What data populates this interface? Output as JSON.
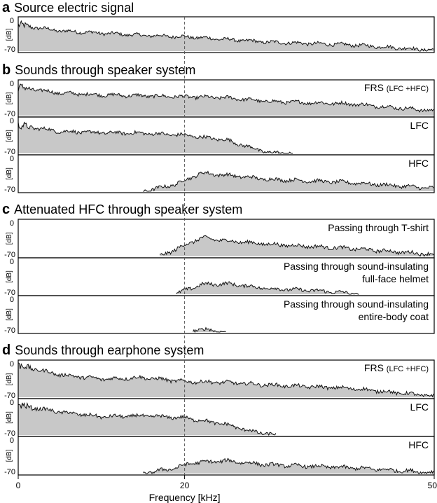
{
  "chart_data": {
    "type": "area",
    "title": "",
    "xlabel": "Frequency [kHz]",
    "xlim": [
      0,
      50
    ],
    "xticks": [
      "0",
      "20",
      "50"
    ],
    "reference_line_x": 20,
    "ylabel": "[dB]",
    "ylim": [
      -70,
      0
    ],
    "yticks": [
      "0",
      "-70"
    ],
    "grid": false,
    "sections": [
      {
        "letter": "a",
        "title": "Source electric signal",
        "panels": [
          {
            "label": "",
            "sublabel": "",
            "envelope": [
              [
                0,
                -12
              ],
              [
                5,
                -25
              ],
              [
                10,
                -30
              ],
              [
                15,
                -35
              ],
              [
                20,
                -38
              ],
              [
                30,
                -50
              ],
              [
                40,
                -56
              ],
              [
                45,
                -62
              ],
              [
                50,
                -68
              ]
            ],
            "cutoff_low": 0,
            "cutoff_high": 50
          }
        ]
      },
      {
        "letter": "b",
        "title": "Sounds through speaker system",
        "panels": [
          {
            "label": "FRS",
            "sublabel": "(LFC +HFC)",
            "envelope": [
              [
                0,
                -10
              ],
              [
                5,
                -22
              ],
              [
                10,
                -26
              ],
              [
                15,
                -28
              ],
              [
                20,
                -30
              ],
              [
                25,
                -32
              ],
              [
                30,
                -40
              ],
              [
                40,
                -45
              ],
              [
                50,
                -60
              ]
            ],
            "cutoff_low": 0,
            "cutoff_high": 50
          },
          {
            "label": "LFC",
            "sublabel": "",
            "envelope": [
              [
                0,
                -12
              ],
              [
                5,
                -24
              ],
              [
                10,
                -27
              ],
              [
                15,
                -28
              ],
              [
                20,
                -32
              ],
              [
                25,
                -42
              ],
              [
                28,
                -58
              ],
              [
                30,
                -68
              ],
              [
                33,
                -70
              ],
              [
                50,
                -70
              ]
            ],
            "cutoff_low": 0,
            "cutoff_high": 33
          },
          {
            "label": "HFC",
            "sublabel": "",
            "envelope": [
              [
                15,
                -70
              ],
              [
                17,
                -63
              ],
              [
                19,
                -55
              ],
              [
                22,
                -32
              ],
              [
                26,
                -38
              ],
              [
                30,
                -45
              ],
              [
                40,
                -52
              ],
              [
                50,
                -64
              ]
            ],
            "cutoff_low": 15,
            "cutoff_high": 50
          }
        ]
      },
      {
        "letter": "c",
        "title": "Attenuated HFC through speaker system",
        "panels": [
          {
            "label": "Passing through T-shirt",
            "sublabel": "",
            "envelope": [
              [
                17,
                -70
              ],
              [
                19,
                -55
              ],
              [
                22,
                -32
              ],
              [
                25,
                -38
              ],
              [
                30,
                -45
              ],
              [
                40,
                -54
              ],
              [
                50,
                -66
              ]
            ],
            "cutoff_low": 17,
            "cutoff_high": 50
          },
          {
            "label": "Passing through sound-insulating",
            "sublabel": "full-face helmet",
            "envelope": [
              [
                19,
                -70
              ],
              [
                20,
                -62
              ],
              [
                22,
                -50
              ],
              [
                25,
                -48
              ],
              [
                30,
                -58
              ],
              [
                35,
                -62
              ],
              [
                38,
                -65
              ],
              [
                41,
                -70
              ],
              [
                50,
                -70
              ]
            ],
            "cutoff_low": 19,
            "cutoff_high": 41
          },
          {
            "label": "Passing through sound-insulating",
            "sublabel": "entire-body coat",
            "envelope": [
              [
                20,
                -70
              ],
              [
                21,
                -66
              ],
              [
                23,
                -65
              ],
              [
                25,
                -70
              ],
              [
                50,
                -70
              ]
            ],
            "cutoff_low": 21,
            "cutoff_high": 25
          }
        ]
      },
      {
        "letter": "d",
        "title": "Sounds through earphone system",
        "panels": [
          {
            "label": "FRS",
            "sublabel": "(LFC +HFC)",
            "envelope": [
              [
                0,
                -5
              ],
              [
                5,
                -24
              ],
              [
                10,
                -33
              ],
              [
                15,
                -30
              ],
              [
                20,
                -38
              ],
              [
                25,
                -40
              ],
              [
                30,
                -45
              ],
              [
                40,
                -52
              ],
              [
                50,
                -68
              ]
            ],
            "cutoff_low": 0,
            "cutoff_high": 50
          },
          {
            "label": "LFC",
            "sublabel": "",
            "envelope": [
              [
                0,
                -8
              ],
              [
                5,
                -22
              ],
              [
                10,
                -32
              ],
              [
                15,
                -30
              ],
              [
                20,
                -34
              ],
              [
                25,
                -48
              ],
              [
                28,
                -62
              ],
              [
                31,
                -70
              ],
              [
                50,
                -70
              ]
            ],
            "cutoff_low": 0,
            "cutoff_high": 31
          },
          {
            "label": "HFC",
            "sublabel": "",
            "envelope": [
              [
                15,
                -70
              ],
              [
                17,
                -64
              ],
              [
                19,
                -58
              ],
              [
                21,
                -48
              ],
              [
                25,
                -44
              ],
              [
                30,
                -52
              ],
              [
                40,
                -58
              ],
              [
                50,
                -68
              ]
            ],
            "cutoff_low": 15,
            "cutoff_high": 50
          }
        ]
      }
    ]
  }
}
